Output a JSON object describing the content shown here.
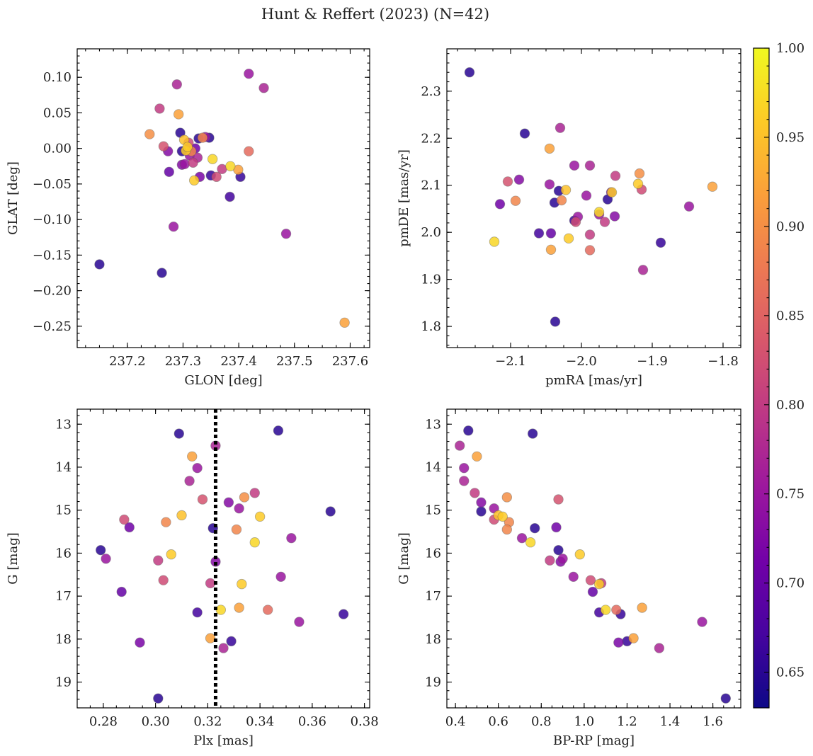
{
  "chart_data": {
    "type": "scatter",
    "title": "Hunt & Reffert (2023) (N=42)",
    "colorbar": {
      "min": 0.63,
      "max": 1.0,
      "ticks": [
        "0.65",
        "0.70",
        "0.75",
        "0.80",
        "0.85",
        "0.90",
        "0.95",
        "1.00"
      ],
      "tick_values": [
        0.65,
        0.7,
        0.75,
        0.8,
        0.85,
        0.9,
        0.95,
        1.0
      ],
      "colormap": [
        "#0d0887",
        "#46039f",
        "#7201a8",
        "#9c179e",
        "#bd3786",
        "#d8576b",
        "#ed7953",
        "#fb9f3a",
        "#fdca26",
        "#f0f921"
      ]
    },
    "panels": [
      {
        "id": "glon-glat",
        "xlabel": "GLON [deg]",
        "ylabel": "GLAT [deg]",
        "xlim": [
          237.11,
          237.635
        ],
        "ylim": [
          -0.28,
          0.14
        ],
        "invert_y": false,
        "xticks": [
          237.2,
          237.3,
          237.4,
          237.5,
          237.6
        ],
        "xtick_labels": [
          "237.2",
          "237.3",
          "237.4",
          "237.5",
          "237.6"
        ],
        "yticks": [
          -0.25,
          -0.2,
          -0.15,
          -0.1,
          -0.05,
          0.0,
          0.05,
          0.1
        ],
        "ytick_labels": [
          "−0.25",
          "−0.20",
          "−0.15",
          "−0.10",
          "−0.05",
          "0.00",
          "0.05",
          "0.10"
        ],
        "vline": null
      },
      {
        "id": "pmra-pmde",
        "xlabel": "pmRA [mas/yr]",
        "ylabel": "pmDE [mas/yr]",
        "xlim": [
          -2.19,
          -1.775
        ],
        "ylim": [
          1.755,
          2.39
        ],
        "invert_y": false,
        "xticks": [
          -2.1,
          -2.0,
          -1.9,
          -1.8
        ],
        "xtick_labels": [
          "−2.1",
          "−2.0",
          "−1.9",
          "−1.8"
        ],
        "yticks": [
          1.8,
          1.9,
          2.0,
          2.1,
          2.2,
          2.3
        ],
        "ytick_labels": [
          "1.8",
          "1.9",
          "2.0",
          "2.1",
          "2.2",
          "2.3"
        ],
        "vline": null
      },
      {
        "id": "plx-g",
        "xlabel": "Plx [mas]",
        "ylabel": "G [mag]",
        "xlim": [
          0.27,
          0.382
        ],
        "ylim": [
          19.6,
          12.65
        ],
        "invert_y": true,
        "xticks": [
          0.28,
          0.3,
          0.32,
          0.34,
          0.36,
          0.38
        ],
        "xtick_labels": [
          "0.28",
          "0.30",
          "0.32",
          "0.34",
          "0.36",
          "0.38"
        ],
        "yticks": [
          13,
          14,
          15,
          16,
          17,
          18,
          19
        ],
        "ytick_labels": [
          "13",
          "14",
          "15",
          "16",
          "17",
          "18",
          "19"
        ],
        "vline": 0.323
      },
      {
        "id": "bprp-g",
        "xlabel": "BP-RP [mag]",
        "ylabel": "G [mag]",
        "xlim": [
          0.36,
          1.73
        ],
        "ylim": [
          19.6,
          12.65
        ],
        "invert_y": true,
        "xticks": [
          0.4,
          0.6,
          0.8,
          1.0,
          1.2,
          1.4,
          1.6
        ],
        "xtick_labels": [
          "0.4",
          "0.6",
          "0.8",
          "1.0",
          "1.2",
          "1.4",
          "1.6"
        ],
        "yticks": [
          13,
          14,
          15,
          16,
          17,
          18,
          19
        ],
        "ytick_labels": [
          "13",
          "14",
          "15",
          "16",
          "17",
          "18",
          "19"
        ],
        "vline": null
      }
    ],
    "stars": [
      {
        "glon": 237.15,
        "glat": -0.163,
        "pmra": -2.158,
        "pmde": 2.34,
        "plx": 0.347,
        "g": 13.15,
        "bprp": 0.46,
        "p": 0.65
      },
      {
        "glon": 237.262,
        "glat": -0.175,
        "pmra": -2.08,
        "pmde": 2.21,
        "plx": 0.309,
        "g": 13.22,
        "bprp": 0.76,
        "p": 0.65
      },
      {
        "glon": 237.289,
        "glat": 0.09,
        "pmra": -2.03,
        "pmde": 2.222,
        "plx": 0.323,
        "g": 13.5,
        "bprp": 0.42,
        "p": 0.77
      },
      {
        "glon": 237.292,
        "glat": 0.048,
        "pmra": -2.045,
        "pmde": 2.178,
        "plx": 0.314,
        "g": 13.75,
        "bprp": 0.5,
        "p": 0.92
      },
      {
        "glon": 237.418,
        "glat": 0.105,
        "pmra": -2.01,
        "pmde": 2.142,
        "plx": 0.316,
        "g": 14.02,
        "bprp": 0.44,
        "p": 0.75
      },
      {
        "glon": 237.445,
        "glat": 0.085,
        "pmra": -1.988,
        "pmde": 2.142,
        "plx": 0.313,
        "g": 14.32,
        "bprp": 0.44,
        "p": 0.77
      },
      {
        "glon": 237.258,
        "glat": 0.056,
        "pmra": -1.952,
        "pmde": 2.12,
        "plx": 0.338,
        "g": 14.6,
        "bprp": 0.49,
        "p": 0.8
      },
      {
        "glon": 237.24,
        "glat": 0.02,
        "pmra": -1.918,
        "pmde": 2.125,
        "plx": 0.334,
        "g": 14.7,
        "bprp": 0.64,
        "p": 0.9
      },
      {
        "glon": 237.265,
        "glat": 0.003,
        "pmra": -2.104,
        "pmde": 2.108,
        "plx": 0.318,
        "g": 14.75,
        "bprp": 0.88,
        "p": 0.83
      },
      {
        "glon": 237.273,
        "glat": -0.004,
        "pmra": -2.088,
        "pmde": 2.112,
        "plx": 0.328,
        "g": 14.82,
        "bprp": 0.52,
        "p": 0.73
      },
      {
        "glon": 237.283,
        "glat": -0.11,
        "pmra": -2.045,
        "pmde": 2.102,
        "plx": 0.332,
        "g": 14.96,
        "bprp": 0.58,
        "p": 0.75
      },
      {
        "glon": 237.295,
        "glat": 0.022,
        "pmra": -2.032,
        "pmde": 2.088,
        "plx": 0.367,
        "g": 15.03,
        "bprp": 0.52,
        "p": 0.65
      },
      {
        "glon": 237.302,
        "glat": 0.012,
        "pmra": -2.022,
        "pmde": 2.09,
        "plx": 0.31,
        "g": 15.12,
        "bprp": 0.6,
        "p": 0.95
      },
      {
        "glon": 237.305,
        "glat": -0.003,
        "pmra": -1.92,
        "pmde": 2.103,
        "plx": 0.34,
        "g": 15.15,
        "bprp": 0.62,
        "p": 0.96
      },
      {
        "glon": 237.31,
        "glat": 0.008,
        "pmra": -1.915,
        "pmde": 2.091,
        "plx": 0.288,
        "g": 15.22,
        "bprp": 0.58,
        "p": 0.82
      },
      {
        "glon": 237.315,
        "glat": -0.004,
        "pmra": -2.093,
        "pmde": 2.067,
        "plx": 0.304,
        "g": 15.28,
        "bprp": 0.65,
        "p": 0.89
      },
      {
        "glon": 237.322,
        "glat": 0.0,
        "pmra": -2.115,
        "pmde": 2.06,
        "plx": 0.29,
        "g": 15.4,
        "bprp": 0.87,
        "p": 0.71
      },
      {
        "glon": 237.328,
        "glat": 0.014,
        "pmra": -2.038,
        "pmde": 2.063,
        "plx": 0.322,
        "g": 15.42,
        "bprp": 0.77,
        "p": 0.65
      },
      {
        "glon": 237.335,
        "glat": 0.015,
        "pmra": -2.028,
        "pmde": 2.068,
        "plx": 0.331,
        "g": 15.45,
        "bprp": 0.64,
        "p": 0.89
      },
      {
        "glon": 237.34,
        "glat": 0.016,
        "pmra": -1.993,
        "pmde": 2.078,
        "plx": 0.352,
        "g": 15.65,
        "bprp": 0.71,
        "p": 0.75
      },
      {
        "glon": 237.353,
        "glat": -0.015,
        "pmra": -1.975,
        "pmde": 2.043,
        "plx": 0.338,
        "g": 15.75,
        "bprp": 0.75,
        "p": 0.97
      },
      {
        "glon": 237.298,
        "glat": -0.004,
        "pmra": -1.963,
        "pmde": 2.07,
        "plx": 0.279,
        "g": 15.93,
        "bprp": 0.88,
        "p": 0.65
      },
      {
        "glon": 237.308,
        "glat": 0.002,
        "pmra": -1.957,
        "pmde": 2.085,
        "plx": 0.306,
        "g": 16.03,
        "bprp": 0.98,
        "p": 0.96
      },
      {
        "glon": 237.312,
        "glat": -0.01,
        "pmra": -1.975,
        "pmde": 2.038,
        "plx": 0.281,
        "g": 16.13,
        "bprp": 0.9,
        "p": 0.75
      },
      {
        "glon": 237.318,
        "glat": -0.02,
        "pmra": -1.967,
        "pmde": 2.022,
        "plx": 0.301,
        "g": 16.17,
        "bprp": 0.84,
        "p": 0.8
      },
      {
        "glon": 237.298,
        "glat": -0.023,
        "pmra": -1.953,
        "pmde": 2.034,
        "plx": 0.323,
        "g": 16.2,
        "bprp": 0.89,
        "p": 0.73
      },
      {
        "glon": 237.303,
        "glat": -0.022,
        "pmra": -2.005,
        "pmde": 2.033,
        "plx": 0.348,
        "g": 16.55,
        "bprp": 0.95,
        "p": 0.75
      },
      {
        "glon": 237.36,
        "glat": -0.04,
        "pmra": -2.008,
        "pmde": 2.022,
        "plx": 0.303,
        "g": 16.63,
        "bprp": 1.03,
        "p": 0.82
      },
      {
        "glon": 237.37,
        "glat": -0.029,
        "pmra": -1.988,
        "pmde": 1.995,
        "plx": 0.321,
        "g": 16.7,
        "bprp": 1.08,
        "p": 0.8
      },
      {
        "glon": 237.32,
        "glat": -0.045,
        "pmra": -2.018,
        "pmde": 1.987,
        "plx": 0.333,
        "g": 16.72,
        "bprp": 1.07,
        "p": 0.96
      },
      {
        "glon": 237.275,
        "glat": -0.033,
        "pmra": -2.043,
        "pmde": 1.998,
        "plx": 0.287,
        "g": 16.9,
        "bprp": 1.04,
        "p": 0.7
      },
      {
        "glon": 237.384,
        "glat": -0.068,
        "pmra": -2.06,
        "pmde": 1.998,
        "plx": 0.316,
        "g": 17.38,
        "bprp": 1.07,
        "p": 0.67
      },
      {
        "glon": 237.385,
        "glat": -0.025,
        "pmra": -2.123,
        "pmde": 1.98,
        "plx": 0.325,
        "g": 17.32,
        "bprp": 1.1,
        "p": 0.97
      },
      {
        "glon": 237.399,
        "glat": -0.03,
        "pmra": -2.043,
        "pmde": 1.963,
        "plx": 0.332,
        "g": 17.27,
        "bprp": 1.27,
        "p": 0.92
      },
      {
        "glon": 237.418,
        "glat": -0.004,
        "pmra": -1.988,
        "pmde": 1.962,
        "plx": 0.343,
        "g": 17.32,
        "bprp": 1.15,
        "p": 0.86
      },
      {
        "glon": 237.403,
        "glat": -0.04,
        "pmra": -1.888,
        "pmde": 1.978,
        "plx": 0.372,
        "g": 17.42,
        "bprp": 1.17,
        "p": 0.66
      },
      {
        "glon": 237.485,
        "glat": -0.12,
        "pmra": -1.848,
        "pmde": 2.055,
        "plx": 0.355,
        "g": 17.6,
        "bprp": 1.55,
        "p": 0.75
      },
      {
        "glon": 237.59,
        "glat": -0.245,
        "pmra": -1.815,
        "pmde": 2.097,
        "plx": 0.321,
        "g": 17.98,
        "bprp": 1.23,
        "p": 0.92
      },
      {
        "glon": 237.35,
        "glat": -0.038,
        "pmra": -2.01,
        "pmde": 2.025,
        "plx": 0.329,
        "g": 18.05,
        "bprp": 1.2,
        "p": 0.66
      },
      {
        "glon": 237.33,
        "glat": -0.04,
        "pmra": -1.958,
        "pmde": 2.085,
        "plx": 0.294,
        "g": 18.08,
        "bprp": 1.16,
        "p": 0.72
      },
      {
        "glon": 237.326,
        "glat": -0.013,
        "pmra": -1.913,
        "pmde": 1.92,
        "plx": 0.326,
        "g": 18.21,
        "bprp": 1.35,
        "p": 0.77
      },
      {
        "glon": 237.347,
        "glat": 0.015,
        "pmra": -2.037,
        "pmde": 1.81,
        "plx": 0.301,
        "g": 19.38,
        "bprp": 1.66,
        "p": 0.65
      }
    ]
  }
}
